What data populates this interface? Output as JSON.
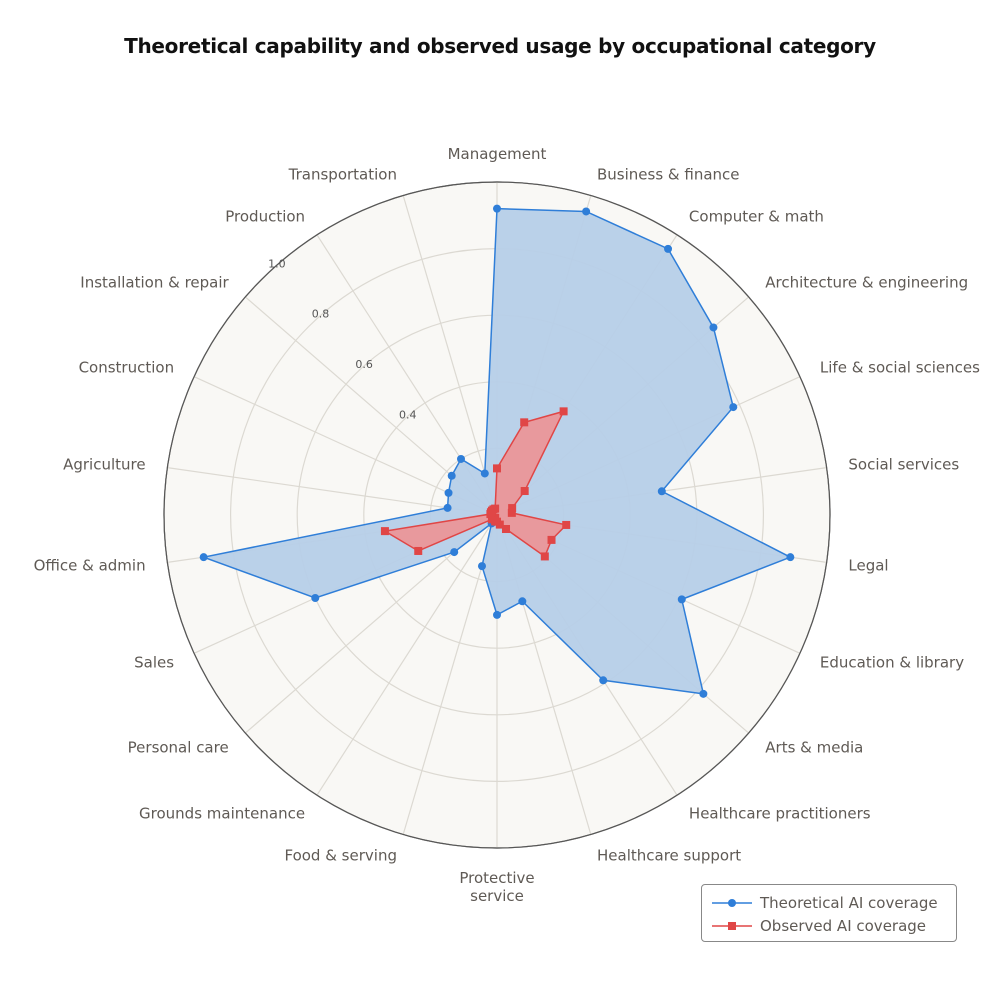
{
  "chart_data": {
    "type": "radar",
    "title": "Theoretical capability and observed usage by occupational category",
    "categories": [
      "Management",
      "Business & finance",
      "Computer & math",
      "Architecture & engineering",
      "Life & social sciences",
      "Social services",
      "Legal",
      "Education & library",
      "Arts & media",
      "Healthcare practitioners",
      "Healthcare support",
      "Protective service",
      "Food & serving",
      "Grounds maintenance",
      "Personal care",
      "Sales",
      "Office & admin",
      "Agriculture",
      "Construction",
      "Installation & repair",
      "Production",
      "Transportation"
    ],
    "radial_ticks": [
      "0.4",
      "0.6",
      "0.8",
      "1.0"
    ],
    "radial_tick_values": [
      0.4,
      0.6,
      0.8,
      1.0
    ],
    "grid_levels": [
      0.2,
      0.4,
      0.6,
      0.8,
      1.0
    ],
    "rlim": [
      0,
      1.0
    ],
    "grid": true,
    "legend_placement": "bottom-right",
    "series": [
      {
        "name": "Theoretical AI coverage",
        "color": "#2f7ed8",
        "fill": "#b6cfe8",
        "marker": "circle",
        "values": [
          0.92,
          0.95,
          0.95,
          0.86,
          0.78,
          0.5,
          0.89,
          0.61,
          0.82,
          0.59,
          0.27,
          0.3,
          0.16,
          0.03,
          0.17,
          0.6,
          0.89,
          0.15,
          0.16,
          0.18,
          0.2,
          0.13
        ]
      },
      {
        "name": "Observed AI coverage",
        "color": "#e04646",
        "fill": "#f08f8f",
        "marker": "square",
        "values": [
          0.14,
          0.29,
          0.37,
          0.11,
          0.05,
          0.045,
          0.21,
          0.18,
          0.19,
          0.05,
          0.03,
          0.02,
          0.02,
          0.01,
          0.02,
          0.26,
          0.34,
          0.02,
          0.02,
          0.02,
          0.02,
          0.02
        ]
      }
    ]
  }
}
